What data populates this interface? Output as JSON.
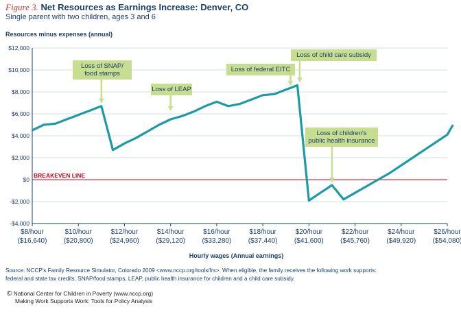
{
  "header": {
    "figure_label": "Figure 3.",
    "title": "Net Resources as Earnings Increase: Denver, CO",
    "subtitle": "Single parent with two children, ages 3 and 6"
  },
  "chart_data": {
    "type": "line",
    "ylabel": "Resources minus expenses (annual)",
    "xlabel": "Hourly wages (Annual earnings)",
    "xlim": [
      8,
      26
    ],
    "ylim": [
      -4000,
      12000
    ],
    "grid": "horizontal",
    "y_ticks": [
      {
        "value": 12000,
        "label": "$12,000"
      },
      {
        "value": 10000,
        "label": "$10,000"
      },
      {
        "value": 8000,
        "label": "$8,000"
      },
      {
        "value": 6000,
        "label": "$6,000"
      },
      {
        "value": 4000,
        "label": "$4,000"
      },
      {
        "value": 2000,
        "label": "$2,000"
      },
      {
        "value": 0,
        "label": "$0"
      },
      {
        "value": -2000,
        "label": "-$2,000"
      },
      {
        "value": -4000,
        "label": "-$4,000"
      }
    ],
    "x_ticks": [
      {
        "value": 8,
        "wage": "$8/hour",
        "earnings": "($16,640)"
      },
      {
        "value": 10,
        "wage": "$10/hour",
        "earnings": "($20,800)"
      },
      {
        "value": 12,
        "wage": "$12/hour",
        "earnings": "($24,960)"
      },
      {
        "value": 14,
        "wage": "$14/hour",
        "earnings": "($29,120)"
      },
      {
        "value": 16,
        "wage": "$16/hour",
        "earnings": "($33,280)"
      },
      {
        "value": 18,
        "wage": "$18/hour",
        "earnings": "($37,440)"
      },
      {
        "value": 20,
        "wage": "$20/hour",
        "earnings": "($41,600)"
      },
      {
        "value": 22,
        "wage": "$22/hour",
        "earnings": "($45,760)"
      },
      {
        "value": 24,
        "wage": "$24/hour",
        "earnings": "($49,920)"
      },
      {
        "value": 26,
        "wage": "$26/hour",
        "earnings": "($54,080)"
      }
    ],
    "series": [
      {
        "color": "#1a9ba6",
        "points": [
          [
            8,
            4500
          ],
          [
            8.5,
            5000
          ],
          [
            9,
            5100
          ],
          [
            9.5,
            5500
          ],
          [
            10,
            5900
          ],
          [
            10.5,
            6300
          ],
          [
            11,
            6700
          ],
          [
            11.5,
            2700
          ],
          [
            12,
            3300
          ],
          [
            12.5,
            3800
          ],
          [
            13,
            4400
          ],
          [
            13.5,
            5000
          ],
          [
            14,
            5500
          ],
          [
            14.5,
            5800
          ],
          [
            15,
            6200
          ],
          [
            15.5,
            6700
          ],
          [
            16,
            7100
          ],
          [
            16.5,
            6700
          ],
          [
            17,
            6900
          ],
          [
            17.5,
            7300
          ],
          [
            18,
            7700
          ],
          [
            18.5,
            7800
          ],
          [
            19,
            8200
          ],
          [
            19.5,
            8600
          ],
          [
            20,
            -1900
          ],
          [
            20.5,
            -1200
          ],
          [
            21,
            -500
          ],
          [
            21.5,
            -1800
          ],
          [
            22,
            -1200
          ],
          [
            22.5,
            -600
          ],
          [
            23,
            0
          ],
          [
            23.5,
            600
          ],
          [
            24,
            1300
          ],
          [
            24.5,
            2000
          ],
          [
            25,
            2700
          ],
          [
            25.5,
            3400
          ],
          [
            26,
            4100
          ],
          [
            26.25,
            5000
          ]
        ]
      }
    ],
    "reference_line": {
      "y": 0,
      "label": "BREAKEVEN LINE",
      "color": "#d0021b"
    },
    "annotations": [
      {
        "lines": [
          "Loss of SNAP/",
          "food stamps"
        ],
        "x": 11,
        "y": 6700
      },
      {
        "lines": [
          "Loss of LEAP"
        ],
        "x": 14,
        "y": 6000
      },
      {
        "lines": [
          "Loss of federal EITC"
        ],
        "x": 19.2,
        "y": 8300
      },
      {
        "lines": [
          "Loss of child care subsidy"
        ],
        "x": 19.6,
        "y": 8600
      },
      {
        "lines": [
          "Loss of children's",
          "public health insurance"
        ],
        "x": 21,
        "y": -500
      }
    ],
    "annotation_color": "#c7dd8f"
  },
  "source": {
    "line1": "Source: NCCP's Family Resource Simulator, Colorado 2009 <www.nccp.org/tools/frs>.  When eligible, the family receives the following work supports:",
    "line2": "federal and state tax credits, SNAP/food stamps, LEAP, public health insurance for children and a child care subsidy."
  },
  "footer": {
    "copyright_symbol": "©",
    "org": "National Center for Children in Poverty (www.nccp.org)",
    "publication": "Making Work Supports Work: Tools for Policy Analysis"
  }
}
